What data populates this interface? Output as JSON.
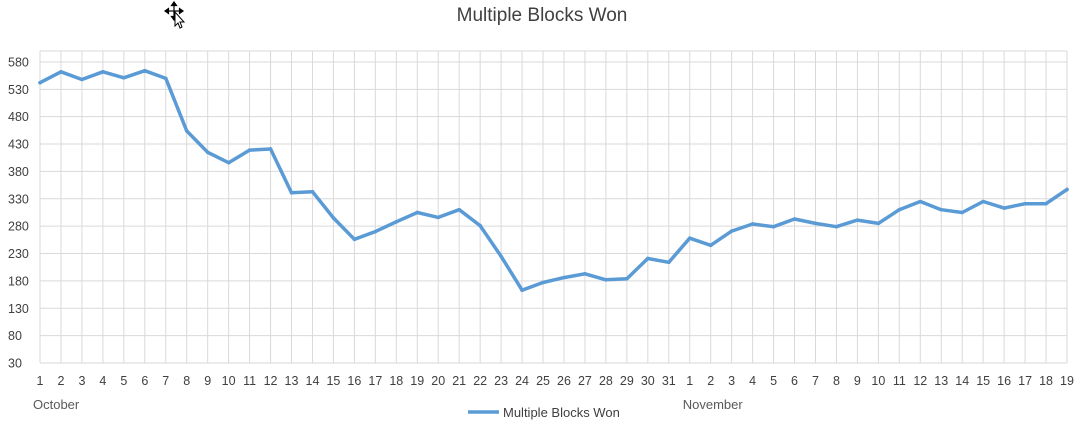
{
  "chart_data": {
    "type": "line",
    "title": "Multiple Blocks Won",
    "xlabel": "",
    "ylabel": "",
    "x_groups": [
      {
        "label": "October",
        "start_index": 0
      },
      {
        "label": "November",
        "start_index": 31
      }
    ],
    "categories": [
      "1",
      "2",
      "3",
      "4",
      "5",
      "6",
      "7",
      "8",
      "9",
      "10",
      "11",
      "12",
      "13",
      "14",
      "15",
      "16",
      "17",
      "18",
      "19",
      "20",
      "21",
      "22",
      "23",
      "24",
      "25",
      "26",
      "27",
      "28",
      "29",
      "30",
      "31",
      "1",
      "2",
      "3",
      "4",
      "5",
      "6",
      "7",
      "8",
      "9",
      "10",
      "11",
      "12",
      "13",
      "14",
      "15",
      "16",
      "17",
      "18",
      "19"
    ],
    "yticks": [
      30,
      80,
      130,
      180,
      230,
      280,
      330,
      380,
      430,
      480,
      530,
      580
    ],
    "ylim": [
      30,
      600
    ],
    "grid": true,
    "legend_position": "bottom",
    "series": [
      {
        "name": "Multiple Blocks Won",
        "color": "#5b9bd5",
        "values": [
          542,
          562,
          548,
          562,
          551,
          564,
          550,
          454,
          415,
          396,
          419,
          421,
          341,
          343,
          295,
          256,
          270,
          288,
          305,
          296,
          310,
          281,
          225,
          163,
          177,
          186,
          193,
          182,
          184,
          221,
          214,
          258,
          245,
          271,
          284,
          279,
          293,
          285,
          279,
          291,
          285,
          310,
          325,
          310,
          305,
          325,
          313,
          321,
          321,
          347
        ]
      }
    ]
  }
}
